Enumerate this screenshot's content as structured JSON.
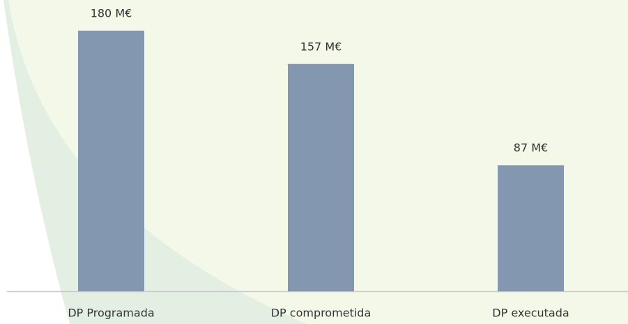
{
  "chart_data": {
    "type": "bar",
    "categories": [
      "DP Programada",
      "DP comprometida",
      "DP executada"
    ],
    "values": [
      180,
      157,
      87
    ],
    "value_labels": [
      "180 M€",
      "157 M€",
      "87 M€"
    ],
    "color": "#8497b0"
  }
}
